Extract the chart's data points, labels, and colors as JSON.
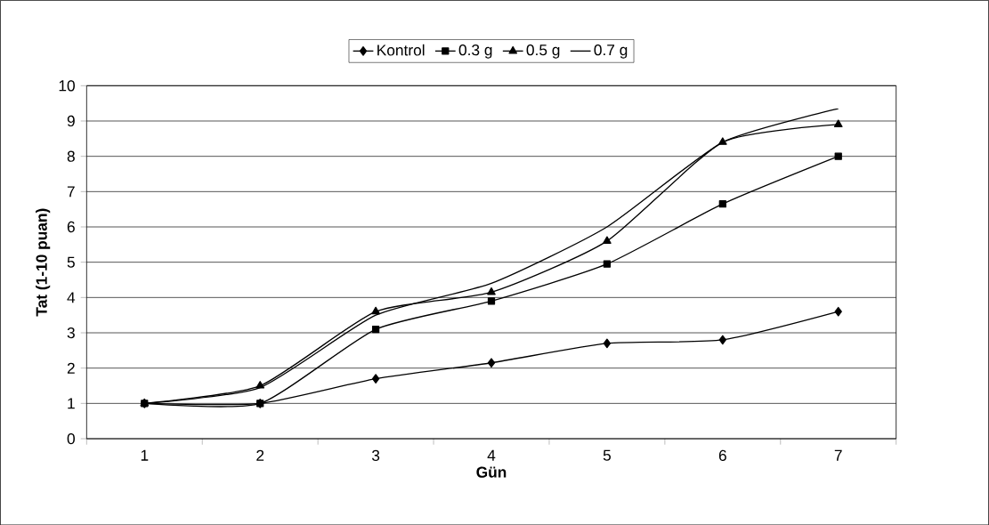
{
  "chart_data": {
    "type": "line",
    "xlabel": "Gün",
    "ylabel": "Tat (1-10 puan)",
    "categories": [
      "1",
      "2",
      "3",
      "4",
      "5",
      "6",
      "7"
    ],
    "series": [
      {
        "name": "Kontrol",
        "color": "#000000",
        "marker": "diamond",
        "values": [
          1,
          1,
          1.7,
          2.15,
          2.7,
          2.8,
          3.6
        ]
      },
      {
        "name": "0.3 g",
        "color": "#000000",
        "marker": "square",
        "values": [
          1,
          1,
          3.1,
          3.9,
          4.95,
          6.65,
          8.0
        ]
      },
      {
        "name": "0.5 g",
        "color": "#000000",
        "marker": "triangle",
        "values": [
          1,
          1.5,
          3.6,
          4.15,
          5.6,
          8.4,
          8.9
        ]
      },
      {
        "name": "0.7 g",
        "color": "#000000",
        "marker": "none",
        "values": [
          1,
          1.45,
          3.5,
          4.4,
          6.0,
          8.4,
          9.35
        ]
      }
    ],
    "ylim": [
      0,
      10
    ],
    "yticks": [
      0,
      1,
      2,
      3,
      4,
      5,
      6,
      7,
      8,
      9,
      10
    ],
    "grid": "y",
    "legend": "top",
    "line_style": "solid"
  }
}
